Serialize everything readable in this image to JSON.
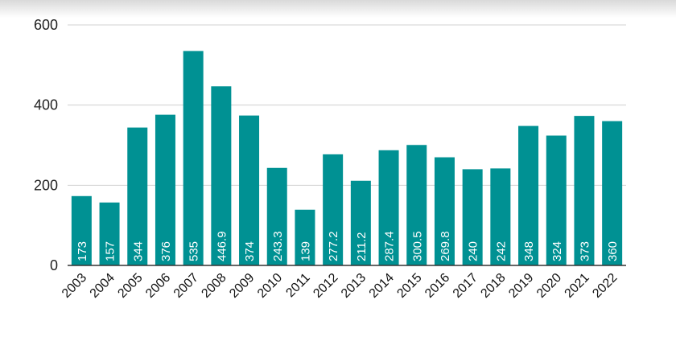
{
  "chart_data": {
    "type": "bar",
    "categories": [
      "2003",
      "2004",
      "2005",
      "2006",
      "2007",
      "2008",
      "2009",
      "2010",
      "2011",
      "2012",
      "2013",
      "2014",
      "2015",
      "2016",
      "2017",
      "2018",
      "2019",
      "2020",
      "2021",
      "2022"
    ],
    "values": [
      173,
      157,
      344,
      376,
      535,
      446.9,
      374,
      243.3,
      139,
      277.2,
      211.2,
      287.4,
      300.5,
      269.8,
      240,
      242,
      348,
      324,
      373,
      360
    ],
    "value_labels": [
      "173",
      "157",
      "344",
      "376",
      "535",
      "446.9",
      "374",
      "243.3",
      "139",
      "277.2",
      "211.2",
      "287.4",
      "300.5",
      "269.8",
      "240",
      "242",
      "348",
      "324",
      "373",
      "360"
    ],
    "title": "",
    "xlabel": "",
    "ylabel": "",
    "ylim": [
      0,
      600
    ],
    "yticks": [
      "0",
      "200",
      "400",
      "600"
    ],
    "grid": true,
    "bar_color": "#009193"
  }
}
